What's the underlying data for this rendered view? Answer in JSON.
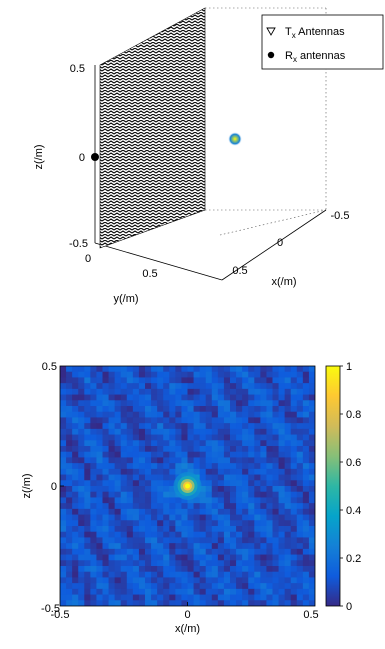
{
  "chart_data": [
    {
      "type": "scatter",
      "subtype": "3d-scene",
      "title": "",
      "xlabel": "x(/m)",
      "ylabel": "y(/m)",
      "zlabel": "z(/m)",
      "xlim": [
        -0.5,
        0.5
      ],
      "ylim": [
        0,
        0.75
      ],
      "zlim": [
        -0.5,
        0.5
      ],
      "x_ticks": [
        "-0.5",
        "0",
        "0.5"
      ],
      "y_ticks": [
        "0",
        "0.5"
      ],
      "z_ticks": [
        "-0.5",
        "0",
        "0.5"
      ],
      "grid": "off",
      "legend_position": "top-right",
      "legend": [
        {
          "marker": "triangle-down",
          "name": "T",
          "sub": "x",
          "suffix": " Antennas"
        },
        {
          "marker": "circle",
          "name": "R",
          "sub": "x",
          "suffix": " antennas"
        }
      ],
      "series": [
        {
          "name": "Tx Antennas",
          "plane": "y = 0",
          "x_range": [
            -0.5,
            0.5
          ],
          "z_range": [
            -0.5,
            0.5
          ],
          "grid_spacing": 0.025
        },
        {
          "name": "Rx antennas",
          "points": [
            {
              "x": 0.5,
              "y": 0,
              "z": 0
            }
          ]
        }
      ],
      "target": {
        "x": 0,
        "y": 0.5,
        "z": 0
      }
    },
    {
      "type": "heatmap",
      "title": "",
      "xlabel": "x(/m)",
      "ylabel": "z(/m)",
      "xlim": [
        -0.5,
        0.5
      ],
      "ylim": [
        -0.5,
        0.5
      ],
      "x_ticks": [
        "-0.5",
        "0",
        "0.5"
      ],
      "y_ticks": [
        "-0.5",
        "0",
        "0.5"
      ],
      "colorbar_ticks": [
        "0",
        "0.2",
        "0.4",
        "0.6",
        "0.8",
        "1"
      ],
      "clim": [
        0,
        1
      ],
      "colormap": [
        "#352a87",
        "#0f5cdd",
        "#1481d6",
        "#06a4ca",
        "#2eb7a4",
        "#87bf77",
        "#d1bb59",
        "#fec832",
        "#f9fb0e"
      ],
      "peak": {
        "x": 0,
        "z": 0,
        "value": 1
      },
      "background_level": 0.1
    }
  ]
}
